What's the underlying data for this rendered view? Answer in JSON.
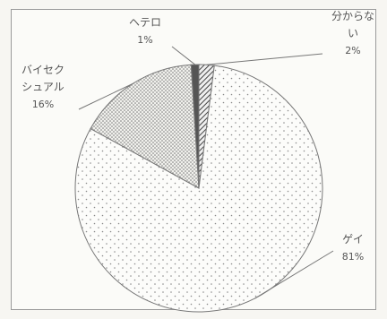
{
  "chart_data": {
    "type": "pie",
    "title": "",
    "slices": [
      {
        "label_lines": [
          "分からな",
          "い"
        ],
        "value": 2,
        "value_label": "2%",
        "fill": "hatch"
      },
      {
        "label_lines": [
          "ゲイ"
        ],
        "value": 81,
        "value_label": "81%",
        "fill": "sparse-dots"
      },
      {
        "label_lines": [
          "バイセク",
          "シュアル"
        ],
        "value": 16,
        "value_label": "16%",
        "fill": "dense-dots"
      },
      {
        "label_lines": [
          "ヘテロ"
        ],
        "value": 1,
        "value_label": "1%",
        "fill": "dark"
      }
    ],
    "start": "12 o'clock",
    "direction": "clockwise",
    "legend": "none",
    "leader_lines": true
  },
  "colors": {
    "outline": "#777777",
    "dots": "#8a8a8a",
    "dark": "#555555",
    "frame": "#9a9a9a",
    "text": "#555555"
  }
}
